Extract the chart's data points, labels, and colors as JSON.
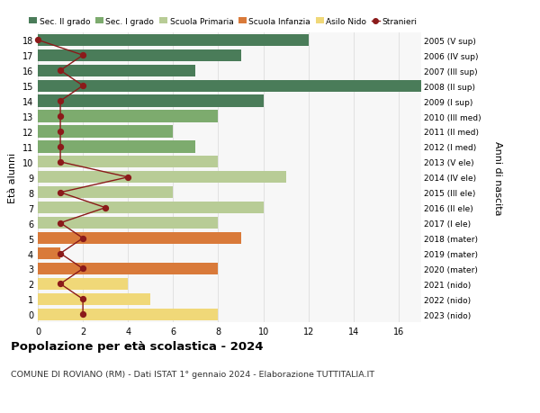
{
  "ages": [
    18,
    17,
    16,
    15,
    14,
    13,
    12,
    11,
    10,
    9,
    8,
    7,
    6,
    5,
    4,
    3,
    2,
    1,
    0
  ],
  "right_labels": [
    "2005 (V sup)",
    "2006 (IV sup)",
    "2007 (III sup)",
    "2008 (II sup)",
    "2009 (I sup)",
    "2010 (III med)",
    "2011 (II med)",
    "2012 (I med)",
    "2013 (V ele)",
    "2014 (IV ele)",
    "2015 (III ele)",
    "2016 (II ele)",
    "2017 (I ele)",
    "2018 (mater)",
    "2019 (mater)",
    "2020 (mater)",
    "2021 (nido)",
    "2022 (nido)",
    "2023 (nido)"
  ],
  "bar_values": [
    12,
    9,
    7,
    17,
    10,
    8,
    6,
    7,
    8,
    11,
    6,
    10,
    8,
    9,
    1,
    8,
    4,
    5,
    8
  ],
  "stranieri": [
    0,
    2,
    1,
    2,
    1,
    1,
    1,
    1,
    1,
    4,
    1,
    3,
    1,
    2,
    1,
    2,
    1,
    2,
    2
  ],
  "bar_colors": [
    "#4a7c59",
    "#4a7c59",
    "#4a7c59",
    "#4a7c59",
    "#4a7c59",
    "#7dab6e",
    "#7dab6e",
    "#7dab6e",
    "#b8cc96",
    "#b8cc96",
    "#b8cc96",
    "#b8cc96",
    "#b8cc96",
    "#d97a3a",
    "#d97a3a",
    "#d97a3a",
    "#f0d878",
    "#f0d878",
    "#f0d878"
  ],
  "legend_labels": [
    "Sec. II grado",
    "Sec. I grado",
    "Scuola Primaria",
    "Scuola Infanzia",
    "Asilo Nido",
    "Stranieri"
  ],
  "legend_colors": [
    "#4a7c59",
    "#7dab6e",
    "#b8cc96",
    "#d97a3a",
    "#f0d878",
    "#b22222"
  ],
  "stranieri_color": "#8b1a1a",
  "xlim_max": 17,
  "xticks": [
    0,
    2,
    4,
    6,
    8,
    10,
    12,
    14,
    16
  ],
  "ylabel": "Età alunni",
  "right_ylabel": "Anni di nascita",
  "title": "Popolazione per età scolastica - 2024",
  "subtitle": "COMUNE DI ROVIANO (RM) - Dati ISTAT 1° gennaio 2024 - Elaborazione TUTTITALIA.IT",
  "bg_color": "#ffffff",
  "plot_bg": "#f7f7f7",
  "grid_color": "#dddddd",
  "bar_height": 0.78,
  "ylim": [
    -0.5,
    18.5
  ]
}
